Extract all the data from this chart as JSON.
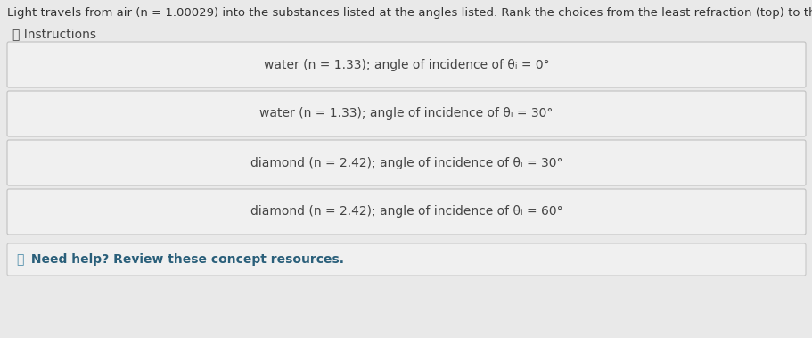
{
  "title": "Light travels from air (n = 1.00029) into the substances listed at the angles listed. Rank the choices from the least refraction (top) to the most refraction (bottom).",
  "instructions_label": "ⓘ Instructions",
  "items": [
    "water (n = 1.33); angle of incidence of θᵢ = 0°",
    "water (n = 1.33); angle of incidence of θᵢ = 30°",
    "diamond (n = 2.42); angle of incidence of θᵢ = 30°",
    "diamond (n = 2.42); angle of incidence of θᵢ = 60°"
  ],
  "footer_icon": "ⓘ",
  "footer_text": " Need help? Review these concept resources.",
  "bg_color": "#e9e9e9",
  "box_face_color": "#f0f0f0",
  "box_edge_color": "#c0c0c0",
  "footer_box_face": "#f0f0f0",
  "footer_box_edge": "#c8c8c8",
  "title_fontsize": 9.5,
  "item_fontsize": 10,
  "instructions_fontsize": 10,
  "footer_fontsize": 10,
  "title_color": "#333333",
  "item_color": "#444444",
  "instructions_color": "#444444",
  "footer_color": "#336688"
}
